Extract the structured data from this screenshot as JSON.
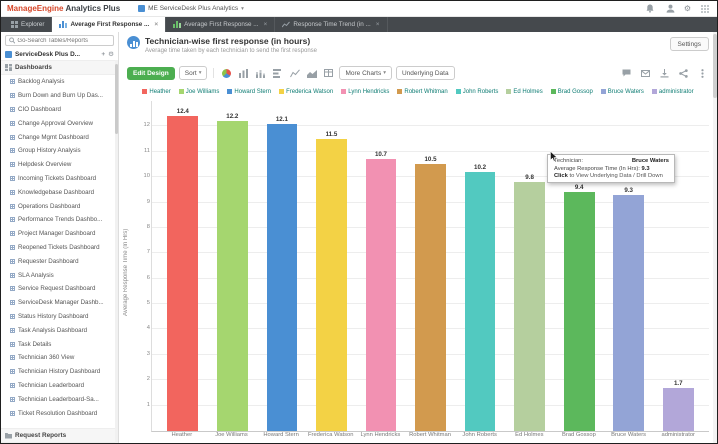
{
  "header": {
    "brand_primary": "ManageEngine",
    "brand_secondary": "Analytics Plus",
    "workspace_tab": "ME ServiceDesk Plus Analytics"
  },
  "icons": {
    "caret_down": "▾",
    "close": "×",
    "add": "+",
    "gear": "⚙"
  },
  "tabstrip": {
    "explorer": "Explorer",
    "tab_active": "Average First Response ...",
    "tab_2": "Average First Response ...",
    "tab_3": "Response Time Trend (in ..."
  },
  "sidebar": {
    "search_placeholder": "Go-Search Tables/Reports",
    "workspace_label": "ServiceDesk Plus D...",
    "dashboards_section": "Dashboards",
    "request_reports_section": "Request Reports",
    "items": [
      "Backlog Analysis",
      "Burn Down and Burn Up Das...",
      "CIO Dashboard",
      "Change Approval Overview",
      "Change Mgmt Dashboard",
      "Group History Analysis",
      "Helpdesk Overview",
      "Incoming Tickets Dashboard",
      "Knowledgebase Dashboard",
      "Operations Dashboard",
      "Performance Trends Dashbo...",
      "Project Manager Dashboard",
      "Reopened Tickets Dashboard",
      "Requester Dashboard",
      "SLA Analysis",
      "Service Request Dashboard",
      "ServiceDesk Manager Dashb...",
      "Status History Dashboard",
      "Task Analysis Dashboard",
      "Task Details",
      "Technician 360 View",
      "Technician History Dashboard",
      "Technician Leaderboard",
      "Technician Leaderboard-Sa...",
      "Ticket Resolution Dashboard"
    ]
  },
  "report": {
    "title": "Technician-wise first response (in hours)",
    "subtitle": "Average time taken by each technician to send the first response",
    "settings": "Settings",
    "edit_design": "Edit Design",
    "sort": "Sort",
    "more_charts": "More Charts",
    "underlying_data": "Underlying Data"
  },
  "tooltip": {
    "technician_label": "Technician:",
    "technician_value": "Bruce Waters",
    "metric_label": "Average Response Time (In Hrs):",
    "metric_value": "9.3",
    "hint_click": "Click",
    "hint_rest": " to View Underlying Data / Drill Down"
  },
  "chart_data": {
    "type": "bar",
    "title": "Technician-wise first response (in hours)",
    "categories": [
      "Heather",
      "Joe Williams",
      "Howard Stern",
      "Frederica Watson",
      "Lynn Hendricks",
      "Robert Whitman",
      "John Roberts",
      "Ed Holmes",
      "Brad Gossop",
      "Bruce Waters",
      "administrator"
    ],
    "values": [
      12.4,
      12.2,
      12.1,
      11.5,
      10.7,
      10.5,
      10.2,
      9.8,
      9.4,
      9.3,
      1.7
    ],
    "colors": [
      "#f2655e",
      "#a5d66f",
      "#4a8fd3",
      "#f3d245",
      "#f291b2",
      "#d29a4e",
      "#52c9c0",
      "#b5cf9e",
      "#5cb85c",
      "#93a4d6",
      "#b2a7d9"
    ],
    "xlabel": "",
    "ylabel": "Average Response Time (In Hrs)",
    "yticks": [
      12,
      11,
      10,
      9,
      8,
      7,
      6,
      5,
      4,
      3,
      2,
      1
    ],
    "ylim": [
      0,
      13
    ],
    "grid": true,
    "legend_position": "top"
  }
}
